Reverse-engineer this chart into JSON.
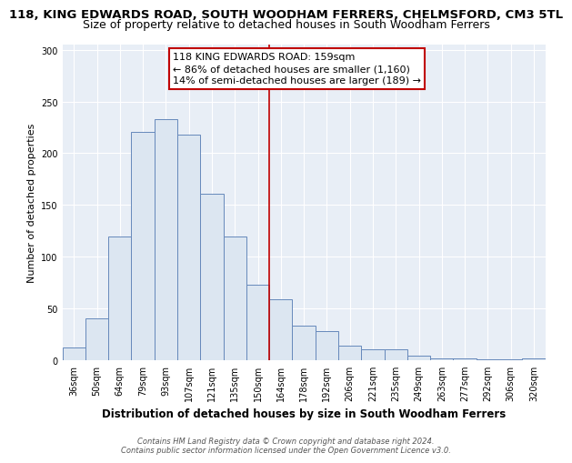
{
  "title": "118, KING EDWARDS ROAD, SOUTH WOODHAM FERRERS, CHELMSFORD, CM3 5TL",
  "subtitle": "Size of property relative to detached houses in South Woodham Ferrers",
  "xlabel": "Distribution of detached houses by size in South Woodham Ferrers",
  "ylabel": "Number of detached properties",
  "bar_labels": [
    "36sqm",
    "50sqm",
    "64sqm",
    "79sqm",
    "93sqm",
    "107sqm",
    "121sqm",
    "135sqm",
    "150sqm",
    "164sqm",
    "178sqm",
    "192sqm",
    "206sqm",
    "221sqm",
    "235sqm",
    "249sqm",
    "263sqm",
    "277sqm",
    "292sqm",
    "306sqm",
    "320sqm"
  ],
  "bar_values": [
    12,
    40,
    119,
    221,
    233,
    218,
    161,
    119,
    73,
    59,
    33,
    28,
    14,
    10,
    10,
    4,
    2,
    2,
    1,
    1,
    2
  ],
  "bar_color": "#dce6f1",
  "bar_edge_color": "#6688bb",
  "vline_x": 8.5,
  "vline_color": "#c00000",
  "annotation_line1": "118 KING EDWARDS ROAD: 159sqm",
  "annotation_line2": "← 86% of detached houses are smaller (1,160)",
  "annotation_line3": "14% of semi-detached houses are larger (189) →",
  "annotation_box_color": "#ffffff",
  "annotation_box_edge": "#c00000",
  "plot_bg_color": "#e8eef6",
  "ylim": [
    0,
    305
  ],
  "yticks": [
    0,
    50,
    100,
    150,
    200,
    250,
    300
  ],
  "footer_text": "Contains HM Land Registry data © Crown copyright and database right 2024.\nContains public sector information licensed under the Open Government Licence v3.0.",
  "title_fontsize": 9.5,
  "subtitle_fontsize": 9,
  "xlabel_fontsize": 8.5,
  "ylabel_fontsize": 8,
  "tick_fontsize": 7,
  "annot_fontsize": 8,
  "footer_fontsize": 6
}
